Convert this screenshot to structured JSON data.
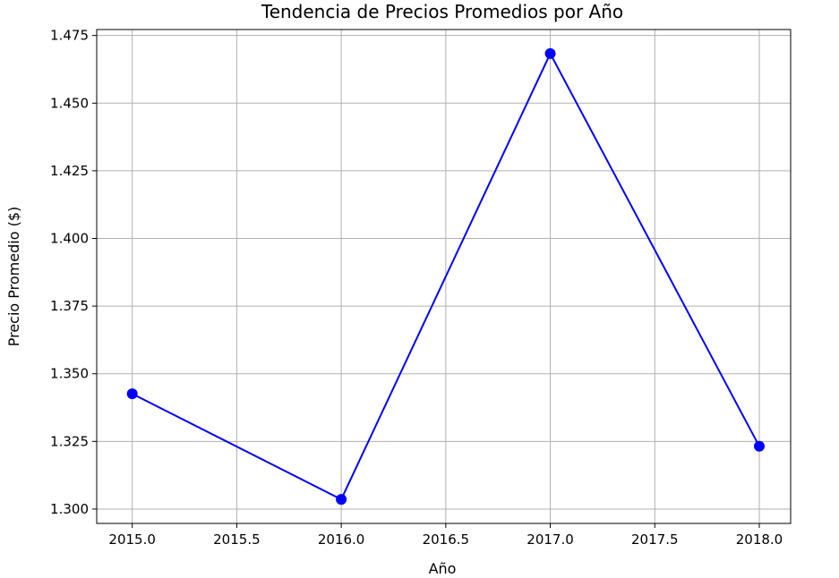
{
  "chart_data": {
    "type": "line",
    "title": "Tendencia de Precios Promedios por Año",
    "xlabel": "Año",
    "ylabel": "Precio Promedio ($)",
    "x": [
      2015,
      2016,
      2017,
      2018
    ],
    "series": [
      {
        "values": [
          1.3426,
          1.3036,
          1.4683,
          1.3232
        ],
        "color": "#0000ff",
        "marker": "circle"
      }
    ],
    "xlim": [
      2014.83,
      2018.15
    ],
    "ylim": [
      1.2947,
      1.4772
    ],
    "xticks": [
      "2015.0",
      "2015.5",
      "2016.0",
      "2016.5",
      "2017.0",
      "2017.5",
      "2018.0"
    ],
    "xtick_values": [
      2015.0,
      2015.5,
      2016.0,
      2016.5,
      2017.0,
      2017.5,
      2018.0
    ],
    "yticks": [
      "1.300",
      "1.325",
      "1.350",
      "1.375",
      "1.400",
      "1.425",
      "1.450",
      "1.475"
    ],
    "ytick_values": [
      1.3,
      1.325,
      1.35,
      1.375,
      1.4,
      1.425,
      1.45,
      1.475
    ],
    "grid": true,
    "grid_color": "#b0b0b0"
  }
}
